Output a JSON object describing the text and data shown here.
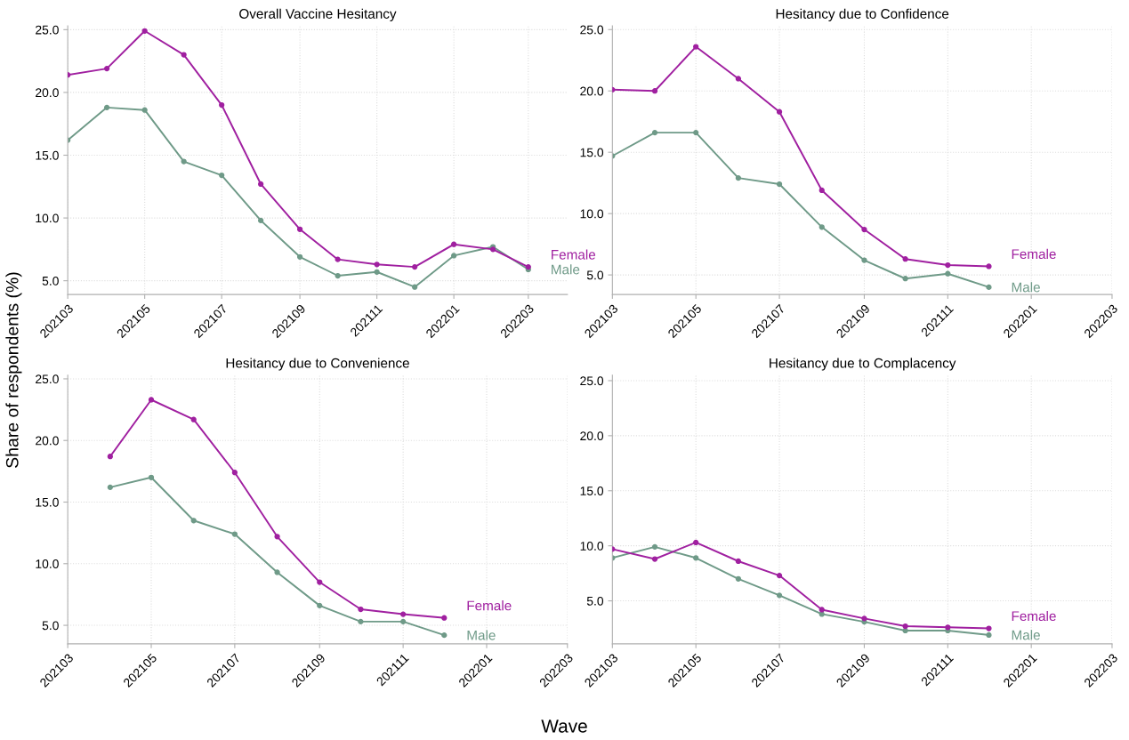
{
  "chart_data": [
    {
      "type": "line",
      "title": "Overall Vaccine Hesitancy",
      "xlim": [
        "2021-03",
        "2022-04"
      ],
      "ylim": [
        3.9,
        25.3
      ],
      "yticks": [
        {
          "value": 5,
          "label": "5.0"
        },
        {
          "value": 10,
          "label": "10.0"
        },
        {
          "value": 15,
          "label": "15.0"
        },
        {
          "value": 20,
          "label": "20.0"
        },
        {
          "value": 25,
          "label": "25.0"
        }
      ],
      "xticks": [
        {
          "value": "2021-03",
          "label": "202103"
        },
        {
          "value": "2021-05",
          "label": "202105"
        },
        {
          "value": "2021-07",
          "label": "202107"
        },
        {
          "value": "2021-09",
          "label": "202109"
        },
        {
          "value": "2021-11",
          "label": "202111"
        },
        {
          "value": "2022-01",
          "label": "202201"
        },
        {
          "value": "2022-03",
          "label": "202203"
        }
      ],
      "grid": true,
      "marker": "circle",
      "line_style": "solid",
      "legend": false,
      "series": [
        {
          "name": "Female",
          "color": "#a020a0",
          "x": [
            "2021-03",
            "2021-04",
            "2021-05",
            "2021-06",
            "2021-07",
            "2021-08",
            "2021-09",
            "2021-10",
            "2021-11",
            "2021-12",
            "2022-01",
            "2022-02",
            "2022-03"
          ],
          "values": [
            21.4,
            21.9,
            24.9,
            23.0,
            19.0,
            12.7,
            9.1,
            6.7,
            6.3,
            6.1,
            7.9,
            7.5,
            6.1
          ]
        },
        {
          "name": "Male",
          "color": "#6f9a88",
          "x": [
            "2021-03",
            "2021-04",
            "2021-05",
            "2021-06",
            "2021-07",
            "2021-08",
            "2021-09",
            "2021-10",
            "2021-11",
            "2021-12",
            "2022-01",
            "2022-02",
            "2022-03"
          ],
          "values": [
            16.2,
            18.8,
            18.6,
            14.5,
            13.4,
            9.8,
            6.9,
            5.4,
            5.7,
            4.5,
            7.0,
            7.7,
            5.9
          ]
        }
      ]
    },
    {
      "type": "line",
      "title": "Hesitancy due to Confidence",
      "xlim": [
        "2021-03",
        "2022-03"
      ],
      "ylim": [
        3.4,
        25.3
      ],
      "yticks": [
        {
          "value": 5,
          "label": "5.0"
        },
        {
          "value": 10,
          "label": "10.0"
        },
        {
          "value": 15,
          "label": "15.0"
        },
        {
          "value": 20,
          "label": "20.0"
        },
        {
          "value": 25,
          "label": "25.0"
        }
      ],
      "xticks": [
        {
          "value": "2021-03",
          "label": "202103"
        },
        {
          "value": "2021-05",
          "label": "202105"
        },
        {
          "value": "2021-07",
          "label": "202107"
        },
        {
          "value": "2021-09",
          "label": "202109"
        },
        {
          "value": "2021-11",
          "label": "202111"
        },
        {
          "value": "2022-01",
          "label": "202201"
        },
        {
          "value": "2022-03",
          "label": "202203"
        }
      ],
      "grid": true,
      "marker": "circle",
      "line_style": "solid",
      "legend": false,
      "series": [
        {
          "name": "Female",
          "color": "#a020a0",
          "x": [
            "2021-03",
            "2021-04",
            "2021-05",
            "2021-06",
            "2021-07",
            "2021-08",
            "2021-09",
            "2021-10",
            "2021-11",
            "2021-12"
          ],
          "values": [
            20.1,
            20.0,
            23.6,
            21.0,
            18.3,
            11.9,
            8.7,
            6.3,
            5.8,
            5.7
          ]
        },
        {
          "name": "Male",
          "color": "#6f9a88",
          "x": [
            "2021-03",
            "2021-04",
            "2021-05",
            "2021-06",
            "2021-07",
            "2021-08",
            "2021-09",
            "2021-10",
            "2021-11",
            "2021-12"
          ],
          "values": [
            14.7,
            16.6,
            16.6,
            12.9,
            12.4,
            8.9,
            6.2,
            4.7,
            5.1,
            4.0
          ]
        }
      ]
    },
    {
      "type": "line",
      "title": "Hesitancy due to Convenience",
      "xlabel": "Wave",
      "ylabel": "Share of respondents (%)",
      "xlim": [
        "2021-03",
        "2022-03"
      ],
      "ylim": [
        3.5,
        25.3
      ],
      "yticks": [
        {
          "value": 5,
          "label": "5.0"
        },
        {
          "value": 10,
          "label": "10.0"
        },
        {
          "value": 15,
          "label": "15.0"
        },
        {
          "value": 20,
          "label": "20.0"
        },
        {
          "value": 25,
          "label": "25.0"
        }
      ],
      "xticks": [
        {
          "value": "2021-03",
          "label": "202103"
        },
        {
          "value": "2021-05",
          "label": "202105"
        },
        {
          "value": "2021-07",
          "label": "202107"
        },
        {
          "value": "2021-09",
          "label": "202109"
        },
        {
          "value": "2021-11",
          "label": "202111"
        },
        {
          "value": "2022-01",
          "label": "202201"
        },
        {
          "value": "2022-03",
          "label": "202203"
        }
      ],
      "grid": true,
      "marker": "circle",
      "line_style": "solid",
      "legend": false,
      "series": [
        {
          "name": "Female",
          "color": "#a020a0",
          "x": [
            "2021-04",
            "2021-05",
            "2021-06",
            "2021-07",
            "2021-08",
            "2021-09",
            "2021-10",
            "2021-11",
            "2021-12"
          ],
          "values": [
            18.7,
            23.3,
            21.7,
            17.4,
            12.2,
            8.5,
            6.3,
            5.9,
            5.6
          ]
        },
        {
          "name": "Male",
          "color": "#6f9a88",
          "x": [
            "2021-04",
            "2021-05",
            "2021-06",
            "2021-07",
            "2021-08",
            "2021-09",
            "2021-10",
            "2021-11",
            "2021-12"
          ],
          "values": [
            16.2,
            17.0,
            13.5,
            12.4,
            9.3,
            6.6,
            5.3,
            5.3,
            4.2
          ]
        }
      ]
    },
    {
      "type": "line",
      "title": "Hesitancy due to Complacency",
      "xlim": [
        "2021-03",
        "2022-03"
      ],
      "ylim": [
        1.1,
        25.5
      ],
      "yticks": [
        {
          "value": 5,
          "label": "5.0"
        },
        {
          "value": 10,
          "label": "10.0"
        },
        {
          "value": 15,
          "label": "15.0"
        },
        {
          "value": 20,
          "label": "20.0"
        },
        {
          "value": 25,
          "label": "25.0"
        }
      ],
      "xticks": [
        {
          "value": "2021-03",
          "label": "202103"
        },
        {
          "value": "2021-05",
          "label": "202105"
        },
        {
          "value": "2021-07",
          "label": "202107"
        },
        {
          "value": "2021-09",
          "label": "202109"
        },
        {
          "value": "2021-11",
          "label": "202111"
        },
        {
          "value": "2022-01",
          "label": "202201"
        },
        {
          "value": "2022-03",
          "label": "202203"
        }
      ],
      "grid": true,
      "marker": "circle",
      "line_style": "solid",
      "legend": false,
      "series": [
        {
          "name": "Female",
          "color": "#a020a0",
          "x": [
            "2021-03",
            "2021-04",
            "2021-05",
            "2021-06",
            "2021-07",
            "2021-08",
            "2021-09",
            "2021-10",
            "2021-11",
            "2021-12"
          ],
          "values": [
            9.7,
            8.8,
            10.3,
            8.6,
            7.3,
            4.2,
            3.4,
            2.7,
            2.6,
            2.5
          ]
        },
        {
          "name": "Male",
          "color": "#6f9a88",
          "x": [
            "2021-03",
            "2021-04",
            "2021-05",
            "2021-06",
            "2021-07",
            "2021-08",
            "2021-09",
            "2021-10",
            "2021-11",
            "2021-12"
          ],
          "values": [
            8.9,
            9.9,
            8.9,
            7.0,
            5.5,
            3.8,
            3.1,
            2.3,
            2.3,
            1.9
          ]
        }
      ]
    }
  ]
}
